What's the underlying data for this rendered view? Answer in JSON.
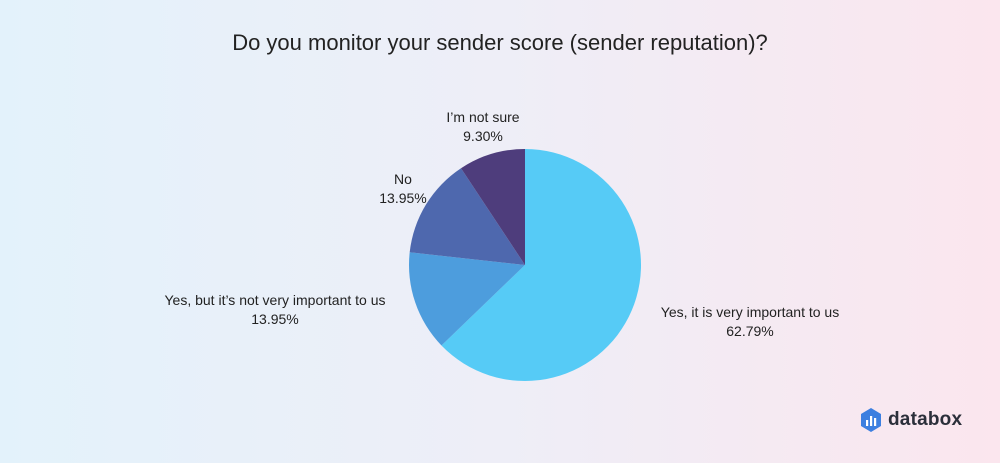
{
  "chart_data": {
    "type": "pie",
    "title": "Do you monitor your sender score (sender reputation)?",
    "slices": [
      {
        "label": "Yes, it is very important to us",
        "value": 62.79,
        "value_label": "62.79%",
        "color": "#56cbf6"
      },
      {
        "label": "Yes, but it’s not very important to us",
        "value": 13.95,
        "value_label": "13.95%",
        "color": "#4d9ddd"
      },
      {
        "label": "No",
        "value": 13.95,
        "value_label": "13.95%",
        "color": "#4e68ae"
      },
      {
        "label": "I’m not sure",
        "value": 9.3,
        "value_label": "9.30%",
        "color": "#4e3d7c"
      }
    ],
    "start": "top",
    "direction": "clockwise"
  },
  "brand": {
    "name": "databox",
    "icon": "databox-logo-icon",
    "color": "#3c7fe0"
  }
}
